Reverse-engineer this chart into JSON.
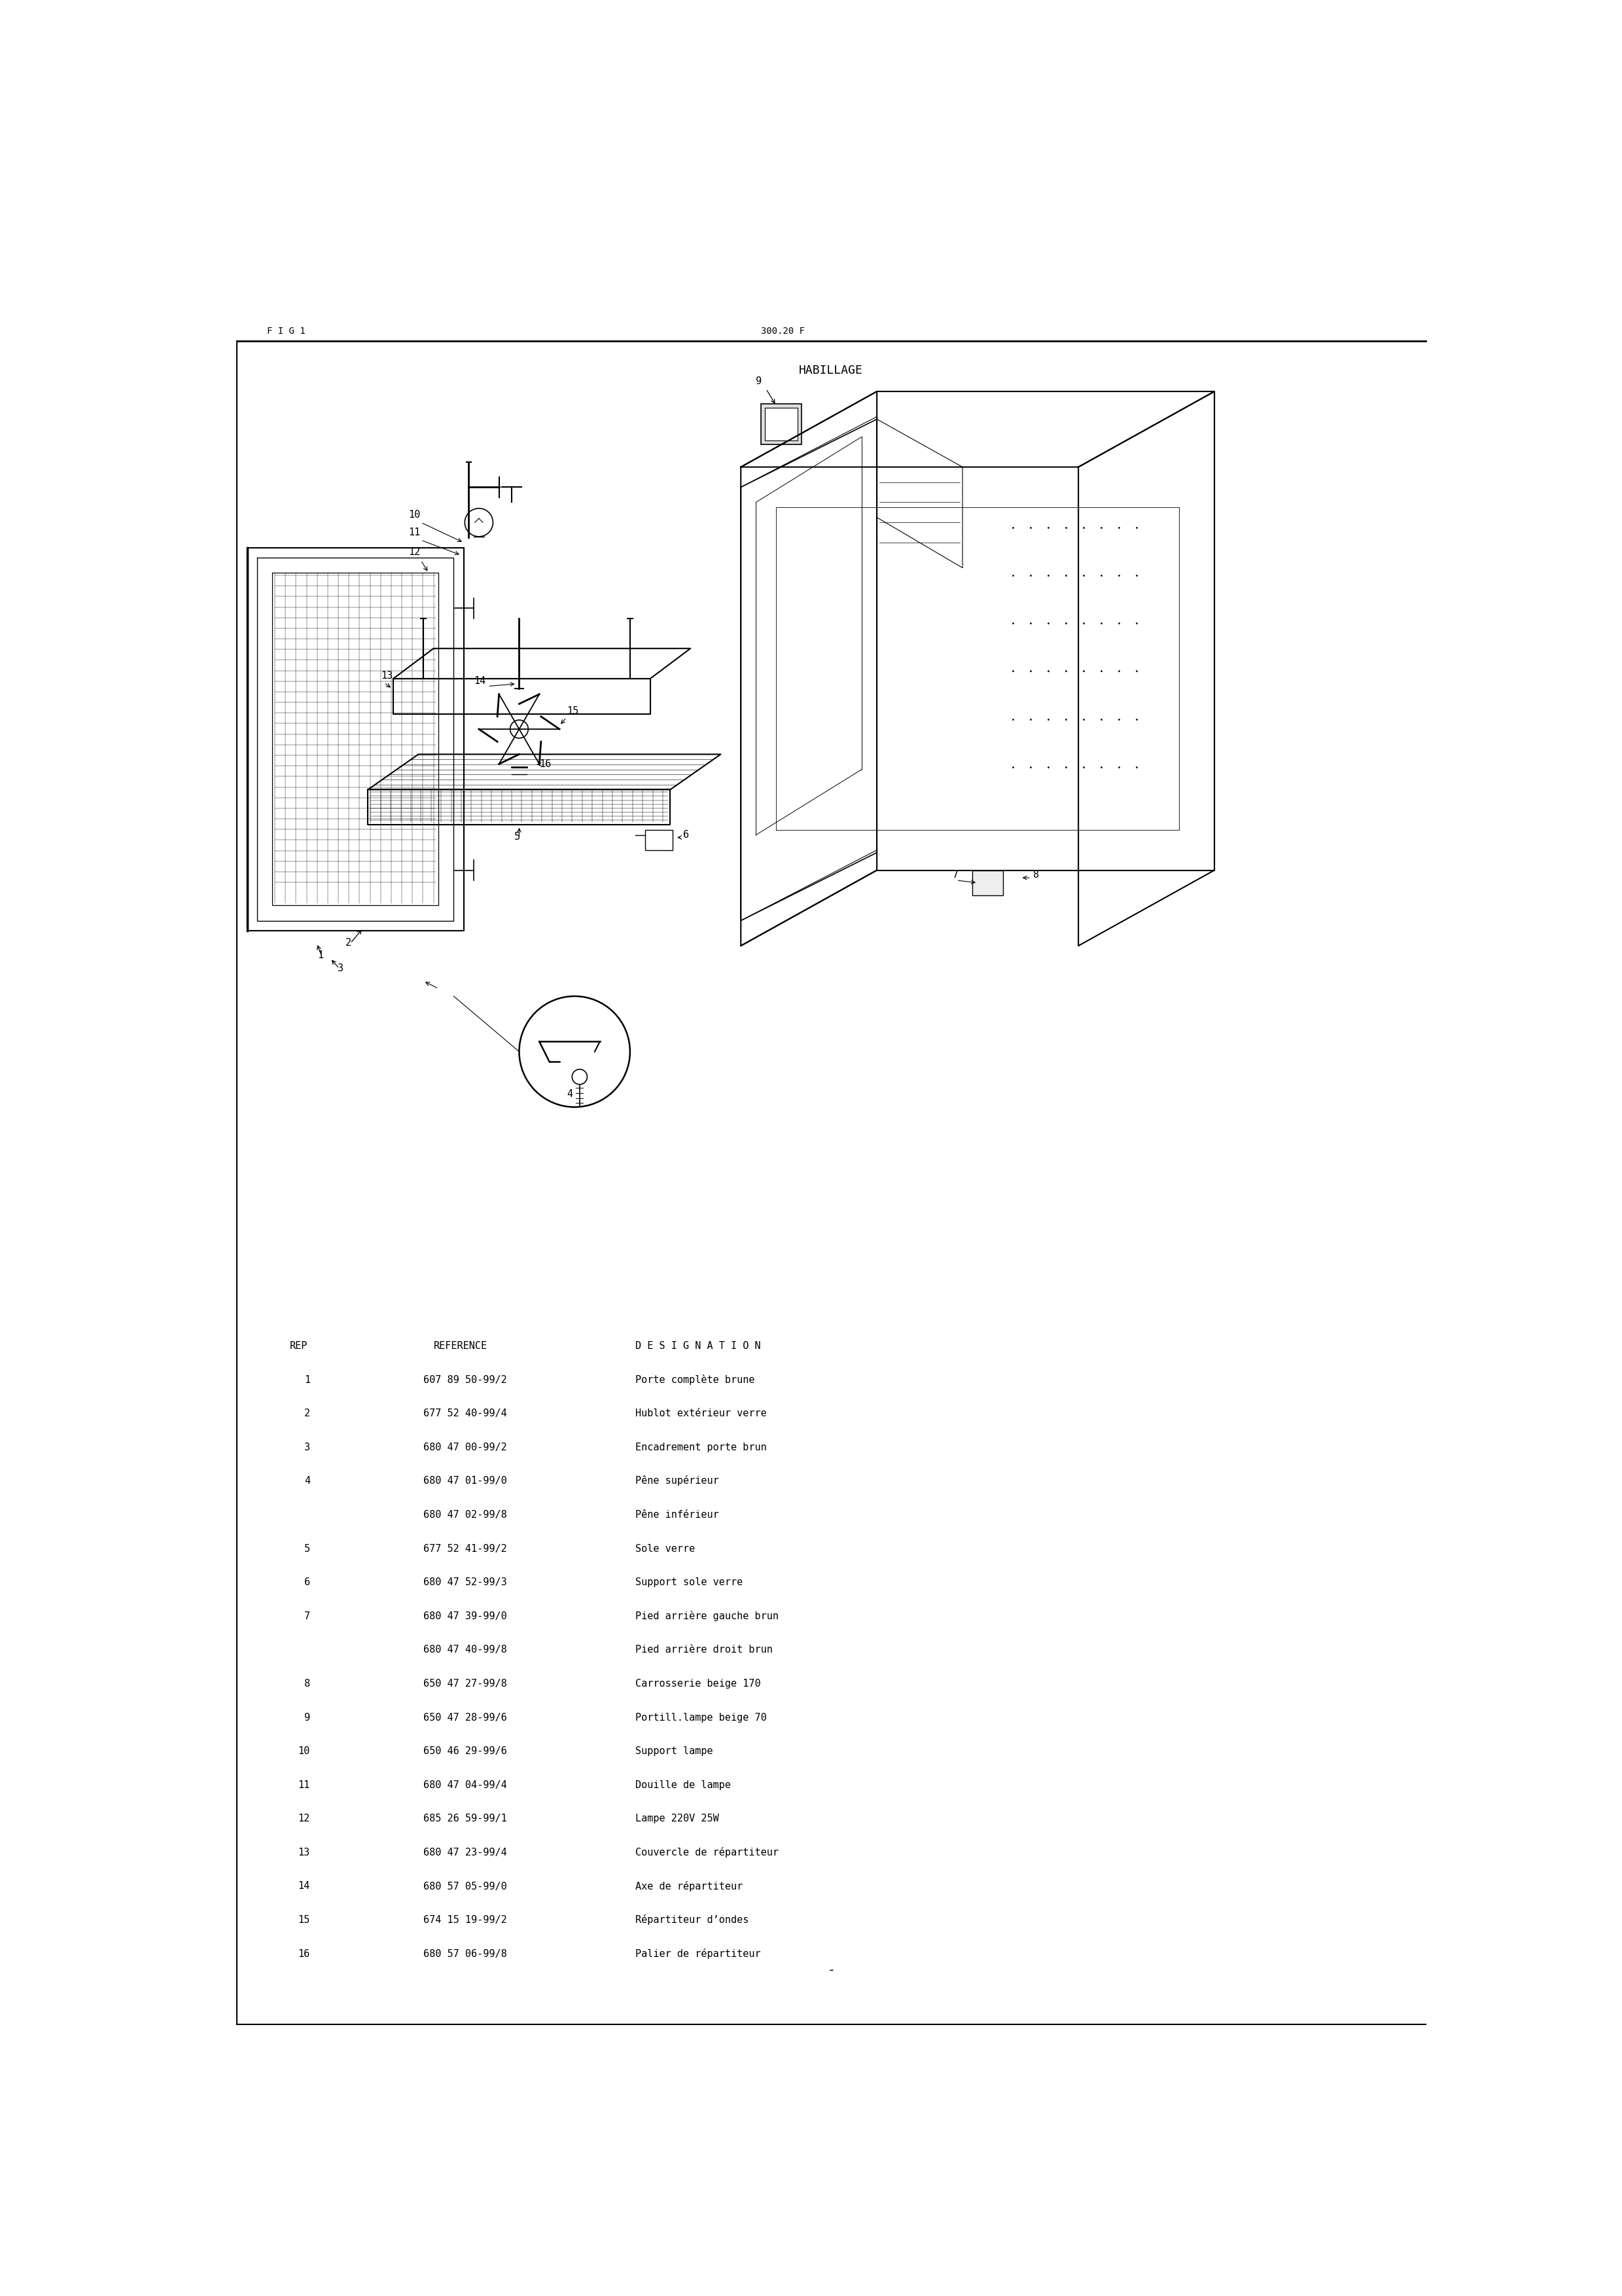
{
  "page_header_left": "F I G 1",
  "page_header_center": "300.20 F",
  "section_title": "HABILLAGE",
  "table_header": [
    "REP",
    "REFERENCE",
    "D E S I G N A T I O N"
  ],
  "parts": [
    {
      "rep": "1",
      "ref": "607 89 50-99/2",
      "desc": "Porte complète brune"
    },
    {
      "rep": "2",
      "ref": "677 52 40-99/4",
      "desc": "Hublot extérieur verre"
    },
    {
      "rep": "3",
      "ref": "680 47 00-99/2",
      "desc": "Encadrement porte brun"
    },
    {
      "rep": "4",
      "ref": "680 47 01-99/0",
      "desc": "Pêne supérieur"
    },
    {
      "rep": "",
      "ref": "680 47 02-99/8",
      "desc": "Pêne inférieur"
    },
    {
      "rep": "5",
      "ref": "677 52 41-99/2",
      "desc": "Sole verre"
    },
    {
      "rep": "6",
      "ref": "680 47 52-99/3",
      "desc": "Support sole verre"
    },
    {
      "rep": "7",
      "ref": "680 47 39-99/0",
      "desc": "Pied arrière gauche brun"
    },
    {
      "rep": "",
      "ref": "680 47 40-99/8",
      "desc": "Pied arrière droit brun"
    },
    {
      "rep": "8",
      "ref": "650 47 27-99/8",
      "desc": "Carrosserie beige 170"
    },
    {
      "rep": "9",
      "ref": "650 47 28-99/6",
      "desc": "Portill.lampe beige 70"
    },
    {
      "rep": "10",
      "ref": "650 46 29-99/6",
      "desc": "Support lampe"
    },
    {
      "rep": "11",
      "ref": "680 47 04-99/4",
      "desc": "Douille de lampe"
    },
    {
      "rep": "12",
      "ref": "685 26 59-99/1",
      "desc": "Lampe 220V 25W"
    },
    {
      "rep": "13",
      "ref": "680 47 23-99/4",
      "desc": "Couvercle de répartiteur"
    },
    {
      "rep": "14",
      "ref": "680 57 05-99/0",
      "desc": "Axe de répartiteur"
    },
    {
      "rep": "15",
      "ref": "674 15 19-99/2",
      "desc": "Répartiteur d’ondes"
    },
    {
      "rep": "16",
      "ref": "680 57 06-99/8",
      "desc": "Palier de répartiteur"
    }
  ],
  "bg_color": "#ffffff",
  "text_color": "#000000",
  "line_color": "#000000"
}
